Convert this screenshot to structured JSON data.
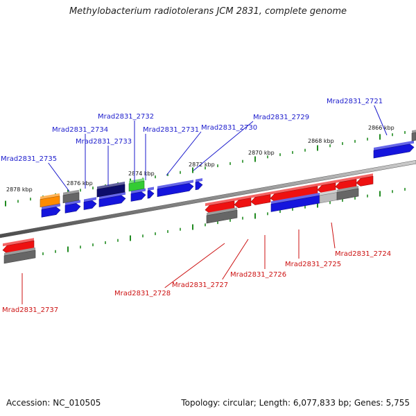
{
  "title": "Methylobacterium radiotolerans JCM 2831, complete genome",
  "footer": {
    "accession": "Accession: NC_010505",
    "topology": "Topology: circular; Length: 6,077,833 bp; Genes: 5,755"
  },
  "colors": {
    "backbone": "#8a8a8a",
    "tick": "#1f8a1f",
    "label_top": "#1a1acc",
    "label_bottom": "#cc1111",
    "gene_blue": "#1515dd",
    "gene_navy": "#0d0d6b",
    "gene_red": "#ee1111",
    "gene_gray": "#666666",
    "gene_lightgray": "#bbbbbb",
    "gene_orange": "#ff8c00",
    "gene_green": "#33cc33"
  },
  "scale_labels": [
    {
      "text": "2878 kbp",
      "kbp": 2878
    },
    {
      "text": "2876 kbp",
      "kbp": 2876
    },
    {
      "text": "2874 kbp",
      "kbp": 2874
    },
    {
      "text": "2872 kbp",
      "kbp": 2872
    },
    {
      "text": "2870 kbp",
      "kbp": 2870
    },
    {
      "text": "2868 kbp",
      "kbp": 2868
    },
    {
      "text": "2866 kbp",
      "kbp": 2866
    }
  ],
  "genes_top": [
    {
      "id": "Mrad2831_2735",
      "color": "gene_blue"
    },
    {
      "id": "Mrad2831_2734",
      "color": "gene_blue"
    },
    {
      "id": "Mrad2831_2733",
      "color": "gene_navy"
    },
    {
      "id": "Mrad2831_2732",
      "color": "gene_green"
    },
    {
      "id": "Mrad2831_2731",
      "color": "gene_blue"
    },
    {
      "id": "Mrad2831_2730",
      "color": "gene_blue"
    },
    {
      "id": "Mrad2831_2729",
      "color": "gene_blue"
    },
    {
      "id": "Mrad2831_2721",
      "color": "gene_blue"
    }
  ],
  "genes_bottom": [
    {
      "id": "Mrad2831_2737",
      "color": "gene_red"
    },
    {
      "id": "Mrad2831_2728",
      "color": "gene_gray"
    },
    {
      "id": "Mrad2831_2727",
      "color": "gene_red"
    },
    {
      "id": "Mrad2831_2726",
      "color": "gene_red"
    },
    {
      "id": "Mrad2831_2725",
      "color": "gene_blue"
    },
    {
      "id": "Mrad2831_2724",
      "color": "gene_red"
    }
  ]
}
